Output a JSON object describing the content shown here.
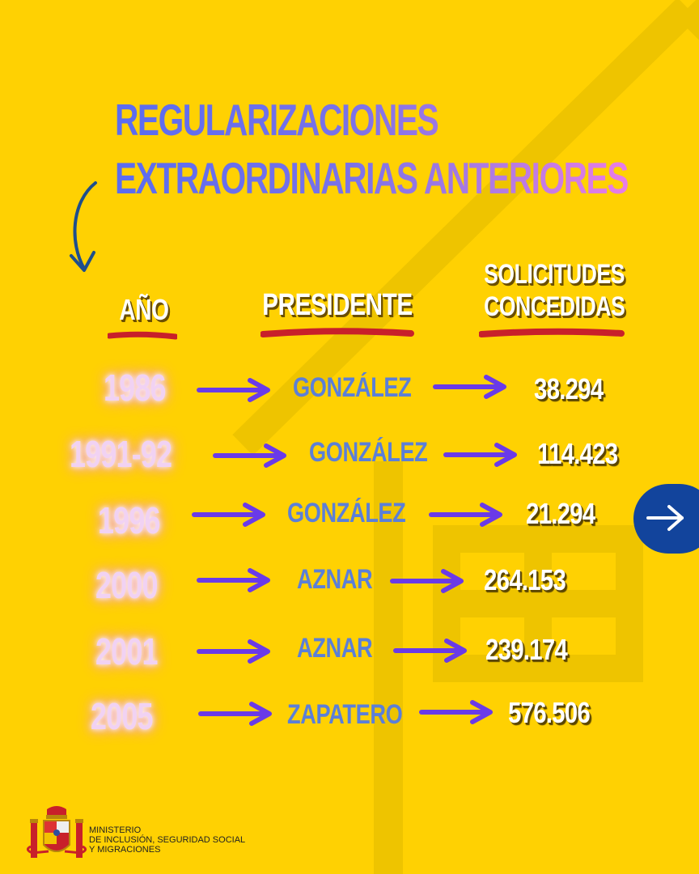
{
  "title": {
    "line1": "REGULARIZACIONES",
    "line2": "EXTRAORDINARIAS ANTERIORES"
  },
  "columns": {
    "year": "AÑO",
    "president": "PRESIDENTE",
    "requests_line1": "SOLICITUDES",
    "requests_line2": "CONCEDIDAS"
  },
  "rows": [
    {
      "year": "1986",
      "president": "GONZÁLEZ",
      "granted": "38.294"
    },
    {
      "year": "1991-92",
      "president": "GONZÁLEZ",
      "granted": "114.423"
    },
    {
      "year": "1996",
      "president": "GONZÁLEZ",
      "granted": "21.294"
    },
    {
      "year": "2000",
      "president": "AZNAR",
      "granted": "264.153"
    },
    {
      "year": "2001",
      "president": "AZNAR",
      "granted": "239.174"
    },
    {
      "year": "2005",
      "president": "ZAPATERO",
      "granted": "576.506"
    }
  ],
  "footer": {
    "line1": "MINISTERIO",
    "line2": "DE INCLUSIÓN, SEGURIDAD SOCIAL",
    "line3": "Y MIGRACIONES"
  },
  "icons": {
    "next": "arrow-right-icon",
    "pointer": "curved-arrow-down-icon",
    "emblem": "coat-of-arms-icon"
  },
  "colors": {
    "background": "#FFD102",
    "year_text": "#F1D2F3",
    "president_text": "#5B7FD8",
    "arrow": "#6A3AE8",
    "underline": "#C8202A",
    "next_button": "#12449C"
  }
}
